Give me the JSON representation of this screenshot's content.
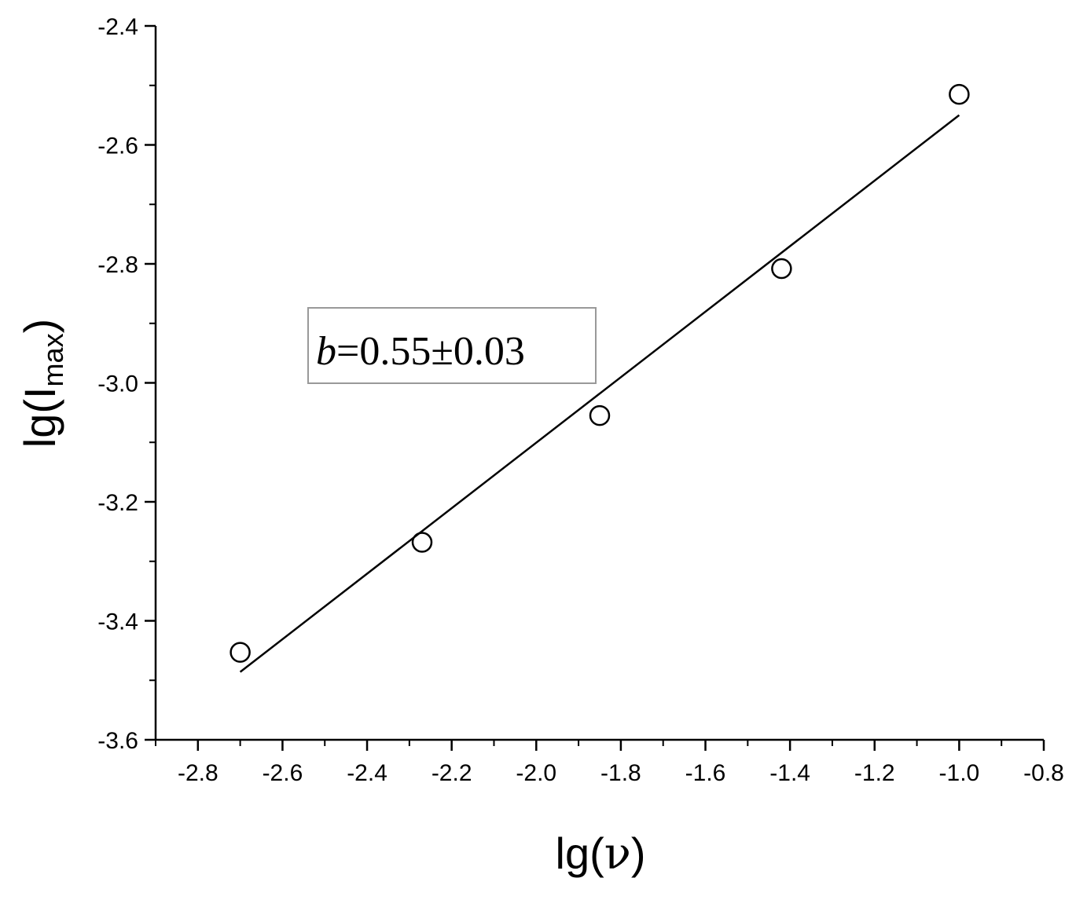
{
  "chart_data": {
    "type": "scatter",
    "title": "",
    "xlabel": {
      "prefix": "lg(",
      "symbol": "ν",
      "suffix": ")"
    },
    "ylabel": {
      "prefix": "lg(I",
      "subscript": "max",
      "suffix": ")"
    },
    "xlim": [
      -2.9,
      -0.8
    ],
    "ylim": [
      -3.6,
      -2.4
    ],
    "xticks": [
      -2.8,
      -2.6,
      -2.4,
      -2.2,
      -2.0,
      -1.8,
      -1.6,
      -1.4,
      -1.2,
      -1.0,
      -0.8
    ],
    "xtick_labels": [
      "-2.8",
      "-2.6",
      "-2.4",
      "-2.2",
      "-2.0",
      "-1.8",
      "-1.6",
      "-1.4",
      "-1.2",
      "-1.0",
      "-0.8"
    ],
    "yticks": [
      -3.6,
      -3.4,
      -3.2,
      -3.0,
      -2.8,
      -2.6,
      -2.4
    ],
    "ytick_labels": [
      "-3.6",
      "-3.4",
      "-3.2",
      "-3.0",
      "-2.8",
      "-2.6",
      "-2.4"
    ],
    "grid": false,
    "series": [
      {
        "marker": "open-circle",
        "x": [
          -2.7,
          -2.27,
          -1.85,
          -1.42,
          -1.0
        ],
        "y": [
          -3.453,
          -3.268,
          -3.055,
          -2.808,
          -2.515
        ]
      }
    ],
    "fit_line": {
      "x": [
        -2.7,
        -1.0
      ],
      "y": [
        -3.486,
        -2.55
      ]
    },
    "annotation": {
      "variable": "b",
      "text": "=0.55±0.03",
      "border_color": "#999999"
    }
  }
}
